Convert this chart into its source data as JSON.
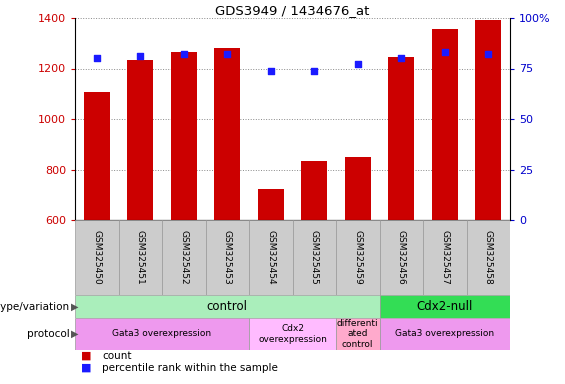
{
  "title": "GDS3949 / 1434676_at",
  "samples": [
    "GSM325450",
    "GSM325451",
    "GSM325452",
    "GSM325453",
    "GSM325454",
    "GSM325455",
    "GSM325459",
    "GSM325456",
    "GSM325457",
    "GSM325458"
  ],
  "counts": [
    1107,
    1235,
    1265,
    1280,
    722,
    833,
    848,
    1245,
    1355,
    1393
  ],
  "percentile_ranks": [
    80,
    81,
    82,
    82,
    74,
    74,
    77,
    80,
    83,
    82
  ],
  "ymin": 600,
  "ymax": 1400,
  "yticks": [
    600,
    800,
    1000,
    1200,
    1400
  ],
  "right_yticks": [
    0,
    25,
    50,
    75,
    100
  ],
  "bar_color": "#cc0000",
  "dot_color": "#1a1aff",
  "grid_color": "#888888",
  "tick_label_color": "#cc0000",
  "right_tick_color": "#0000cc",
  "genotype_groups": [
    {
      "label": "control",
      "start": 0,
      "end": 7,
      "color": "#aaeebb"
    },
    {
      "label": "Cdx2-null",
      "start": 7,
      "end": 10,
      "color": "#33dd55"
    }
  ],
  "protocol_groups": [
    {
      "label": "Gata3 overexpression",
      "start": 0,
      "end": 4,
      "color": "#ee99ee"
    },
    {
      "label": "Cdx2\noverexpression",
      "start": 4,
      "end": 6,
      "color": "#ffbbff"
    },
    {
      "label": "differenti\nated\ncontrol",
      "start": 6,
      "end": 7,
      "color": "#ffaacc"
    },
    {
      "label": "Gata3 overexpression",
      "start": 7,
      "end": 10,
      "color": "#ee99ee"
    }
  ]
}
